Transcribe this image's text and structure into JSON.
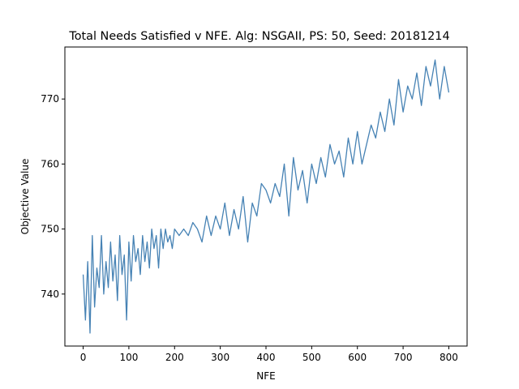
{
  "chart_data": {
    "type": "line",
    "title": "Total Needs Satisfied v NFE. Alg: NSGAII, PS: 50, Seed: 20181214",
    "xlabel": "NFE",
    "ylabel": "Objective Value",
    "xlim": [
      -40,
      840
    ],
    "ylim": [
      732,
      778
    ],
    "xticks": [
      0,
      100,
      200,
      300,
      400,
      500,
      600,
      700,
      800
    ],
    "yticks": [
      740,
      750,
      760,
      770
    ],
    "xtick_labels": [
      "0",
      "100",
      "200",
      "300",
      "400",
      "500",
      "600",
      "700",
      "800"
    ],
    "ytick_labels": [
      "740",
      "750",
      "760",
      "770"
    ],
    "grid": false,
    "line_color": "#4682b4",
    "series": [
      {
        "name": "",
        "x": [
          0,
          5,
          10,
          15,
          20,
          25,
          30,
          35,
          40,
          45,
          50,
          55,
          60,
          65,
          70,
          75,
          80,
          85,
          90,
          95,
          100,
          105,
          110,
          115,
          120,
          125,
          130,
          135,
          140,
          145,
          150,
          155,
          160,
          165,
          170,
          175,
          180,
          185,
          190,
          195,
          200,
          210,
          220,
          230,
          240,
          250,
          260,
          270,
          280,
          290,
          300,
          310,
          320,
          330,
          340,
          350,
          360,
          370,
          380,
          390,
          400,
          410,
          420,
          430,
          440,
          450,
          460,
          470,
          480,
          490,
          500,
          510,
          520,
          530,
          540,
          550,
          560,
          570,
          580,
          590,
          600,
          610,
          620,
          630,
          640,
          650,
          660,
          670,
          680,
          690,
          700,
          710,
          720,
          730,
          740,
          750,
          760,
          770,
          780,
          790,
          800
        ],
        "y": [
          743,
          736,
          745,
          734,
          749,
          738,
          744,
          741,
          749,
          740,
          745,
          741,
          748,
          742,
          746,
          739,
          749,
          743,
          746,
          736,
          748,
          742,
          749,
          745,
          747,
          743,
          749,
          745,
          748,
          744,
          750,
          747,
          749,
          744,
          750,
          747,
          750,
          748,
          749,
          747,
          750,
          749,
          750,
          749,
          751,
          750,
          748,
          752,
          749,
          752,
          750,
          754,
          749,
          753,
          750,
          755,
          748,
          754,
          752,
          757,
          756,
          754,
          757,
          755,
          760,
          752,
          761,
          756,
          759,
          754,
          760,
          757,
          761,
          758,
          763,
          760,
          762,
          758,
          764,
          760,
          765,
          760,
          763,
          766,
          764,
          768,
          765,
          770,
          766,
          773,
          768,
          772,
          770,
          774,
          769,
          775,
          772,
          776,
          770,
          775,
          771
        ]
      }
    ]
  }
}
